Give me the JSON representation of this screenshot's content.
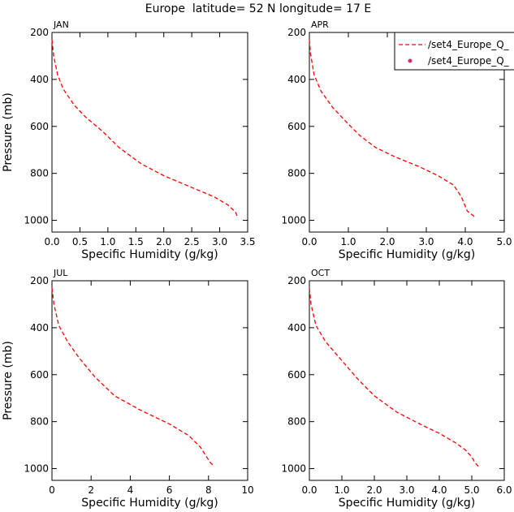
{
  "figure_title": "Europe  latitude= 52 N longitude= 17 E",
  "line_color": "#ff0000",
  "marker_color": "#c8326e",
  "legend": {
    "entries": [
      {
        "label": "/set4_Europe_Q_",
        "kind": "dashed-line"
      },
      {
        "label": "/set4_Europe_Q_",
        "kind": "marker"
      }
    ]
  },
  "chart_data": [
    {
      "type": "line",
      "title": "JAN",
      "xlabel": "Specific Humidity (g/kg)",
      "ylabel": "Pressure (mb)",
      "xlim": [
        0,
        3.5
      ],
      "ylim": [
        1050,
        200
      ],
      "xticks": [
        0,
        0.5,
        1,
        1.5,
        2,
        2.5,
        3,
        3.5
      ],
      "xtick_labels": [
        "0.0",
        "0.5",
        "1.0",
        "1.5",
        "2.0",
        "2.5",
        "3.0",
        "3.5"
      ],
      "yticks": [
        200,
        400,
        600,
        800,
        1000
      ],
      "ytick_labels": [
        "200",
        "400",
        "600",
        "800",
        "1000"
      ],
      "series": [
        {
          "name": "/set4_Europe_Q_",
          "x": [
            0.0,
            0.03,
            0.1,
            0.2,
            0.4,
            0.6,
            0.9,
            1.2,
            1.6,
            2.0,
            2.5,
            2.9,
            3.15,
            3.28,
            3.33
          ],
          "y": [
            230,
            300,
            380,
            440,
            510,
            560,
            620,
            690,
            760,
            810,
            860,
            900,
            935,
            965,
            990
          ]
        }
      ]
    },
    {
      "type": "line",
      "title": "APR",
      "xlabel": "Specific Humidity (g/kg)",
      "ylabel": "Pressure (mb)",
      "xlim": [
        0,
        5
      ],
      "ylim": [
        1050,
        200
      ],
      "xticks": [
        0,
        1,
        2,
        3,
        4,
        5
      ],
      "xtick_labels": [
        "0.0",
        "1.0",
        "2.0",
        "3.0",
        "4.0",
        "5.0"
      ],
      "yticks": [
        200,
        400,
        600,
        800,
        1000
      ],
      "ytick_labels": [
        "200",
        "400",
        "600",
        "800",
        "1000"
      ],
      "series": [
        {
          "name": "/set4_Europe_Q_",
          "x": [
            0.0,
            0.03,
            0.12,
            0.3,
            0.6,
            1.0,
            1.3,
            1.7,
            2.2,
            2.8,
            3.3,
            3.7,
            3.9,
            4.05,
            4.28
          ],
          "y": [
            230,
            290,
            380,
            450,
            520,
            590,
            640,
            690,
            730,
            770,
            810,
            850,
            900,
            960,
            990
          ]
        }
      ]
    },
    {
      "type": "line",
      "title": "JUL",
      "xlabel": "Specific Humidity (g/kg)",
      "ylabel": "Pressure (mb)",
      "xlim": [
        0,
        10
      ],
      "ylim": [
        1050,
        200
      ],
      "xticks": [
        0,
        2,
        4,
        6,
        8,
        10
      ],
      "xtick_labels": [
        "0",
        "2",
        "4",
        "6",
        "8",
        "10"
      ],
      "yticks": [
        200,
        400,
        600,
        800,
        1000
      ],
      "ytick_labels": [
        "200",
        "400",
        "600",
        "800",
        "1000"
      ],
      "series": [
        {
          "name": "/set4_Europe_Q_",
          "x": [
            0.0,
            0.1,
            0.35,
            0.8,
            1.4,
            2.2,
            3.2,
            4.5,
            6.0,
            7.0,
            7.6,
            7.9,
            8.1,
            8.3
          ],
          "y": [
            230,
            300,
            390,
            460,
            530,
            610,
            690,
            750,
            810,
            860,
            910,
            950,
            975,
            990
          ]
        }
      ]
    },
    {
      "type": "line",
      "title": "OCT",
      "xlabel": "Specific Humidity (g/kg)",
      "ylabel": "Pressure (mb)",
      "xlim": [
        0,
        6
      ],
      "ylim": [
        1050,
        200
      ],
      "xticks": [
        0,
        1,
        2,
        3,
        4,
        5,
        6
      ],
      "xtick_labels": [
        "0.0",
        "1.0",
        "2.0",
        "3.0",
        "4.0",
        "5.0",
        "6.0"
      ],
      "yticks": [
        200,
        400,
        600,
        800,
        1000
      ],
      "ytick_labels": [
        "200",
        "400",
        "600",
        "800",
        "1000"
      ],
      "series": [
        {
          "name": "/set4_Europe_Q_",
          "x": [
            0.0,
            0.05,
            0.2,
            0.5,
            1.0,
            1.5,
            2.0,
            2.7,
            3.4,
            4.0,
            4.5,
            4.8,
            5.0,
            5.1,
            5.2
          ],
          "y": [
            230,
            300,
            390,
            460,
            540,
            620,
            690,
            760,
            810,
            850,
            890,
            920,
            950,
            975,
            990
          ]
        }
      ]
    }
  ]
}
